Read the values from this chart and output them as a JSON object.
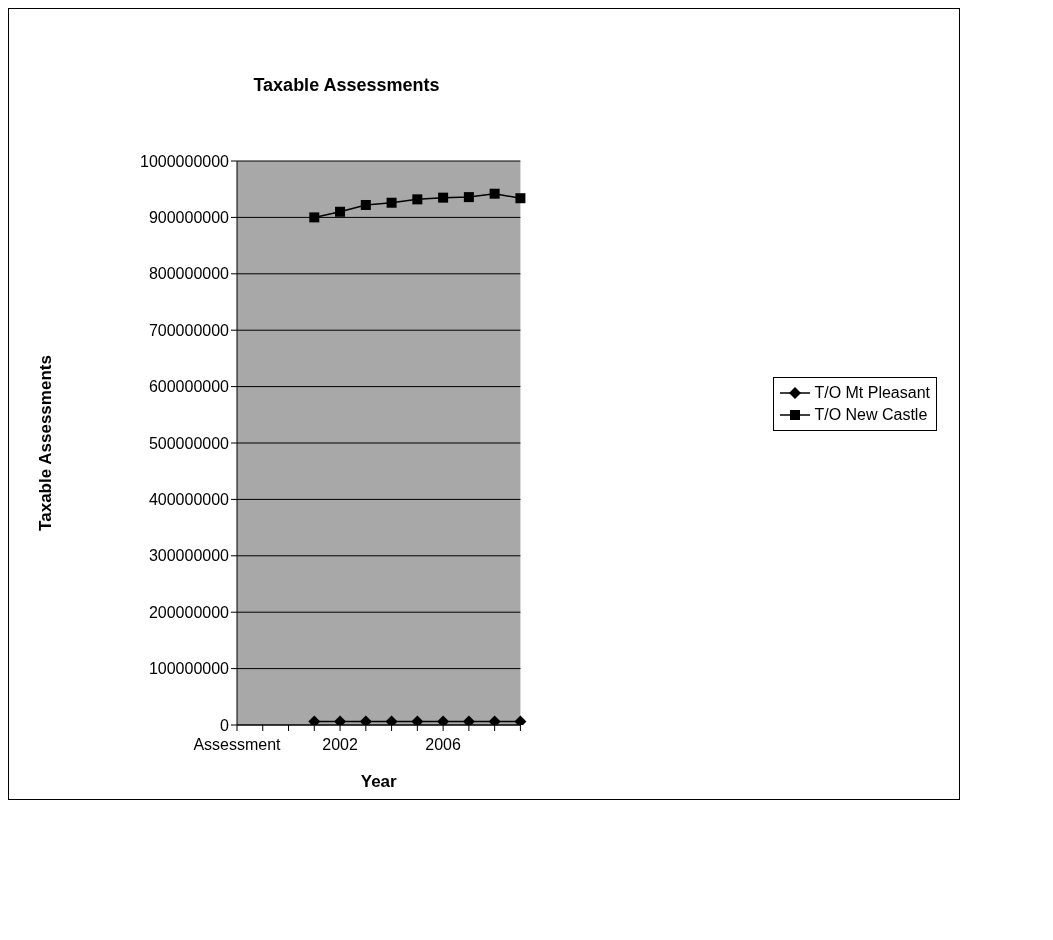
{
  "chart_data": {
    "type": "line",
    "title": "Taxable Assessments",
    "xlabel": "Year",
    "ylabel": "Taxable Assessments",
    "categories": [
      "Assessment",
      null,
      null,
      null,
      "2002",
      null,
      null,
      null,
      "2006",
      null,
      null,
      null
    ],
    "series": [
      {
        "name": "T/O Mt Pleasant",
        "color": "#000000",
        "marker": "diamond",
        "values": [
          null,
          null,
          null,
          6000000,
          6000000,
          6000000,
          6000000,
          6000000,
          6000000,
          6000000,
          6000000,
          6000000
        ]
      },
      {
        "name": "T/O New Castle",
        "color": "#000000",
        "marker": "square",
        "values": [
          null,
          null,
          null,
          900000000,
          910000000,
          922000000,
          926000000,
          932000000,
          935000000,
          936000000,
          942000000,
          934000000
        ]
      }
    ],
    "ylim": [
      0,
      1000000000
    ],
    "yticks": [
      0,
      100000000,
      200000000,
      300000000,
      400000000,
      500000000,
      600000000,
      700000000,
      800000000,
      900000000,
      1000000000
    ],
    "grid": "y",
    "legend": "right",
    "line_style": "solid"
  }
}
